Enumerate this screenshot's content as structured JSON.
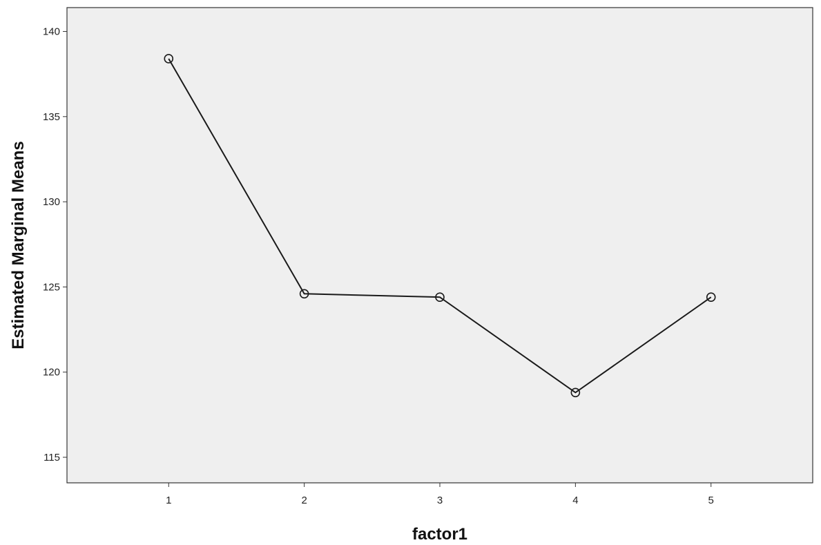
{
  "chart_data": {
    "type": "line",
    "title": "",
    "xlabel": "factor1",
    "ylabel": "Estimated Marginal Means",
    "categories": [
      "1",
      "2",
      "3",
      "4",
      "5"
    ],
    "series": [
      {
        "values": [
          138.4,
          124.6,
          124.4,
          118.8,
          124.4
        ]
      }
    ],
    "xlim": [
      0.25,
      5.75
    ],
    "ylim": [
      113.5,
      141.4
    ],
    "yticks": [
      "115",
      "120",
      "125",
      "130",
      "135",
      "140"
    ],
    "ytick_values": [
      115,
      120,
      125,
      130,
      135,
      140
    ],
    "grid": false,
    "legend": "none",
    "marker": "open-circle",
    "colors": {
      "plot_background": "#efefef",
      "line": "#1a1a1a",
      "frame": "#333333"
    }
  }
}
